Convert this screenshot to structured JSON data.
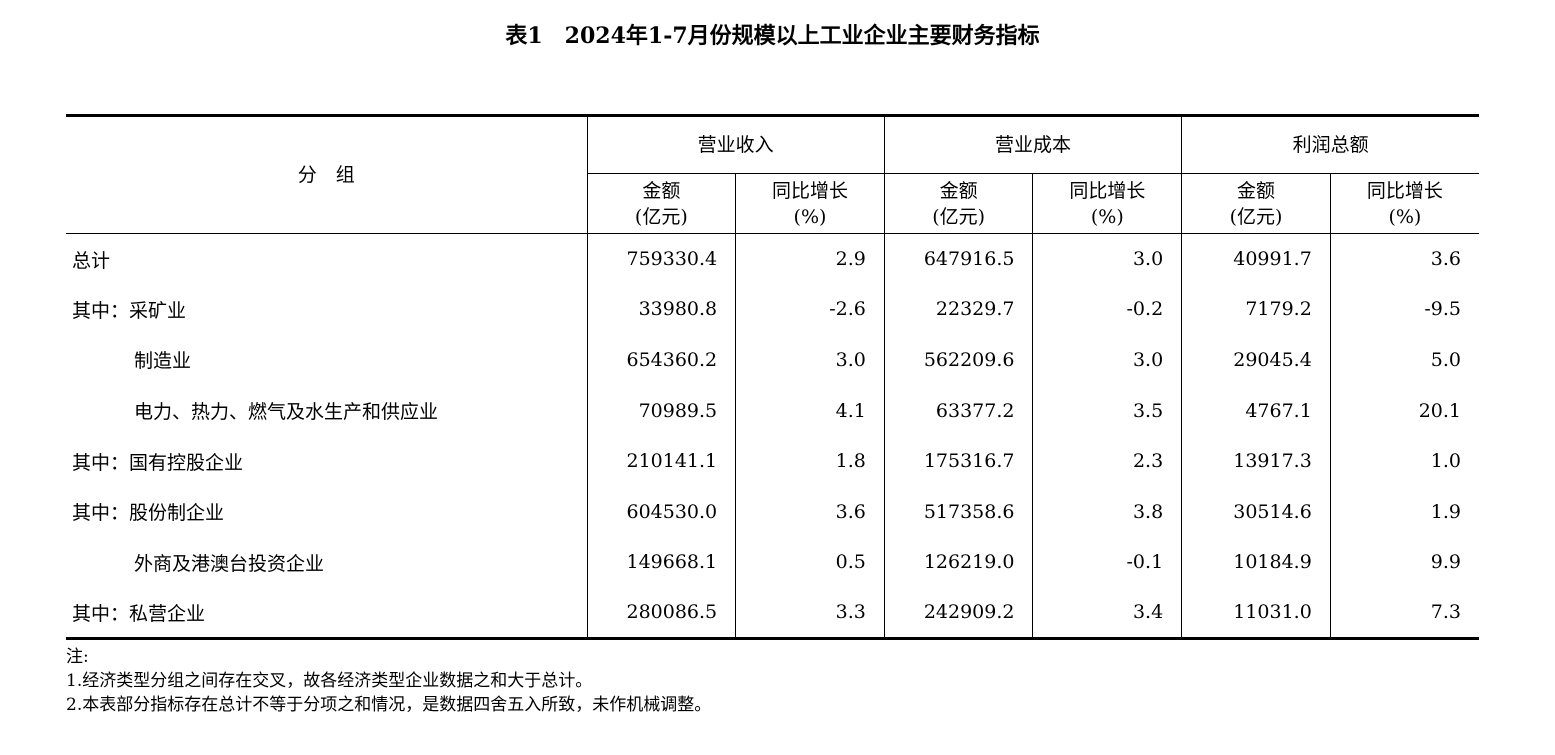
{
  "title": "表1　2024年1-7月份规模以上工业企业主要财务指标",
  "header": {
    "group_label": "分　组",
    "columns": [
      "营业收入",
      "营业成本",
      "利润总额"
    ],
    "sub_amount_line1": "金额",
    "sub_amount_line2": "(亿元)",
    "sub_growth_line1": "同比增长",
    "sub_growth_line2": "(%)"
  },
  "rows": [
    {
      "name": "总计",
      "indent": false,
      "values": [
        "759330.4",
        "2.9",
        "647916.5",
        "3.0",
        "40991.7",
        "3.6"
      ]
    },
    {
      "name": "其中：采矿业",
      "indent": false,
      "values": [
        "33980.8",
        "-2.6",
        "22329.7",
        "-0.2",
        "7179.2",
        "-9.5"
      ]
    },
    {
      "name": "制造业",
      "indent": true,
      "values": [
        "654360.2",
        "3.0",
        "562209.6",
        "3.0",
        "29045.4",
        "5.0"
      ]
    },
    {
      "name": "电力、热力、燃气及水生产和供应业",
      "indent": true,
      "values": [
        "70989.5",
        "4.1",
        "63377.2",
        "3.5",
        "4767.1",
        "20.1"
      ]
    },
    {
      "name": "其中：国有控股企业",
      "indent": false,
      "values": [
        "210141.1",
        "1.8",
        "175316.7",
        "2.3",
        "13917.3",
        "1.0"
      ]
    },
    {
      "name": "其中：股份制企业",
      "indent": false,
      "values": [
        "604530.0",
        "3.6",
        "517358.6",
        "3.8",
        "30514.6",
        "1.9"
      ]
    },
    {
      "name": "外商及港澳台投资企业",
      "indent": true,
      "values": [
        "149668.1",
        "0.5",
        "126219.0",
        "-0.1",
        "10184.9",
        "9.9"
      ]
    },
    {
      "name": "其中：私营企业",
      "indent": false,
      "values": [
        "280086.5",
        "3.3",
        "242909.2",
        "3.4",
        "11031.0",
        "7.3"
      ]
    }
  ],
  "notes": {
    "label": "注:",
    "items": [
      "1.经济类型分组之间存在交叉，故各经济类型企业数据之和大于总计。",
      "2.本表部分指标存在总计不等于分项之和情况，是数据四舍五入所致，未作机械调整。"
    ]
  }
}
